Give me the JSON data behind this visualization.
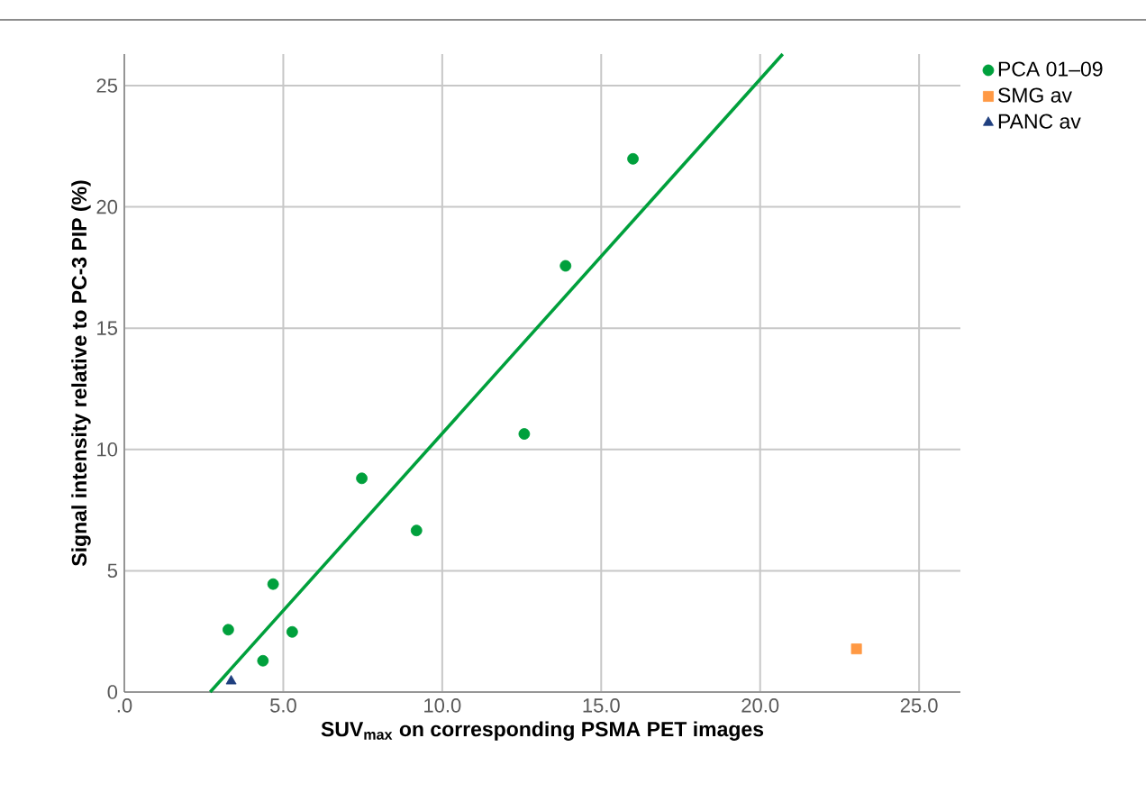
{
  "chart_data": {
    "type": "scatter",
    "xlabel": "SUV$_{max}$ on corresponding PSMA PET images",
    "ylabel": "Signal intensity relative to PC-3 PIP (%)",
    "xlim": [
      0,
      26.3
    ],
    "ylim": [
      0,
      26.3
    ],
    "xticks": [
      {
        "value": 0,
        "label": ".0"
      },
      {
        "value": 5,
        "label": "5.0"
      },
      {
        "value": 10,
        "label": "10.0"
      },
      {
        "value": 15,
        "label": "15.0"
      },
      {
        "value": 20,
        "label": "20.0"
      },
      {
        "value": 25,
        "label": "25.0"
      }
    ],
    "yticks": [
      0,
      5,
      10,
      15,
      20,
      25
    ],
    "grid": true,
    "legend": "right",
    "series": [
      {
        "name": "PCA 01–09",
        "color": "#00a03c",
        "marker": "circle",
        "x": [
          3.27,
          4.36,
          4.68,
          5.28,
          7.47,
          9.19,
          12.58,
          13.88,
          16.0
        ],
        "values": [
          2.57,
          1.29,
          4.45,
          2.48,
          8.81,
          6.66,
          10.64,
          17.57,
          21.98
        ]
      },
      {
        "name": "SMG av",
        "color": "#ff9944",
        "marker": "square",
        "x": [
          23.03
        ],
        "values": [
          1.78
        ]
      },
      {
        "name": "PANC av",
        "color": "#1f3f7f",
        "marker": "triangle",
        "x": [
          3.36
        ],
        "values": [
          0.45
        ]
      },
      {
        "type": "line",
        "color": "#00a03c",
        "marker": "none",
        "x": [
          2.7,
          20.71
        ],
        "values": [
          0,
          26.3
        ]
      }
    ]
  }
}
